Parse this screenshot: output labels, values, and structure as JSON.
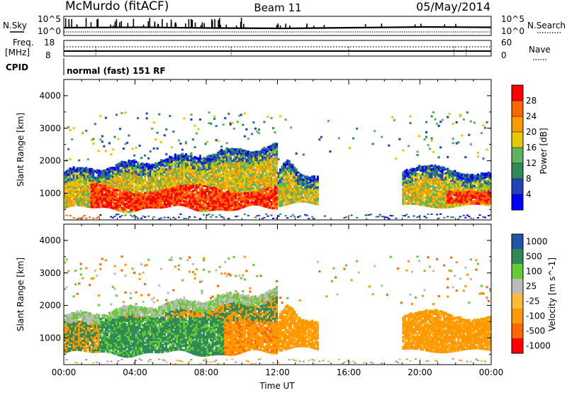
{
  "header": {
    "station": "McMurdo (fitACF)",
    "beam": "Beam 11",
    "date": "05/May/2014"
  },
  "status_panel": {
    "nsky_label": "N.Sky",
    "nsearch_label": "N.Search",
    "count_max_left": "10^5",
    "count_min_left": "10^0",
    "count_max_right": "10^5",
    "count_min_right": "10^0",
    "freq_label": "Freq.",
    "freq_unit": "[MHz]",
    "freq_max": "18",
    "freq_min": "8",
    "nave_label": "Nave",
    "nave_max": "60",
    "nave_min": "0",
    "cpid_label": "CPID",
    "cpid_value": "normal (fast) 151 RF"
  },
  "colors": {
    "power": [
      "#0000ff",
      "#2244bb",
      "#2e8b57",
      "#5fb35f",
      "#e8c800",
      "#ff9900",
      "#ff6600",
      "#ff0000"
    ],
    "velocity": [
      "#ff0000",
      "#ff6600",
      "#ff9900",
      "#ffbb33",
      "#bbbbbb",
      "#66cc33",
      "#2e8b57",
      "#2255aa"
    ],
    "gray": "#a0a0a0"
  },
  "chart_data": [
    {
      "type": "heatmap",
      "name": "power",
      "ylabel": "Slant Range [km]",
      "xlim_hours": [
        0,
        24
      ],
      "ylim": [
        180,
        4500
      ],
      "yticks": [
        1000,
        2000,
        3000,
        4000
      ],
      "colorbar": {
        "label": "Power [dB]",
        "range": [
          0,
          32
        ],
        "ticks": [
          "4",
          "8",
          "12",
          "16",
          "20",
          "24",
          "28"
        ]
      }
    },
    {
      "type": "heatmap",
      "name": "velocity",
      "ylabel": "Slant Range [km]",
      "xlabel": "Time UT",
      "xlim_hours": [
        0,
        24
      ],
      "ylim": [
        180,
        4500
      ],
      "yticks": [
        1000,
        2000,
        3000,
        4000
      ],
      "xticks": [
        "00:00",
        "04:00",
        "08:00",
        "12:00",
        "16:00",
        "20:00",
        "00:00"
      ],
      "colorbar": {
        "label": "Velocity [m s^-1]",
        "ticks": [
          "1000",
          "500",
          "100",
          "25",
          "-25",
          "-100",
          "-500",
          "-1000"
        ]
      }
    }
  ]
}
